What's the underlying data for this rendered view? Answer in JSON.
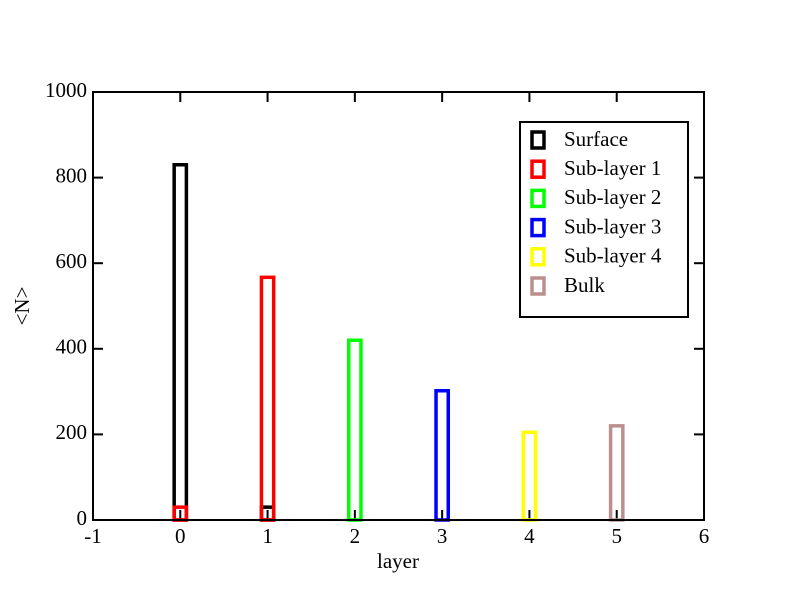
{
  "chart_data": {
    "type": "bar",
    "x_label": "layer",
    "y_label": "<N>",
    "xlim": [
      -1,
      6
    ],
    "xticks": [
      -1,
      0,
      1,
      2,
      3,
      4,
      5,
      6
    ],
    "ylim": [
      0,
      1000
    ],
    "yticks": [
      0,
      200,
      400,
      600,
      800,
      1000
    ],
    "legend": "upper right",
    "series": [
      {
        "name": "Surface",
        "color": "#000000",
        "x": [
          0,
          1
        ],
        "values": [
          830,
          30
        ]
      },
      {
        "name": "Sub-layer 1",
        "color": "#ff0000",
        "x": [
          0,
          1
        ],
        "values": [
          30,
          567
        ]
      },
      {
        "name": "Sub-layer 2",
        "color": "#00ff00",
        "x": [
          2
        ],
        "values": [
          420
        ]
      },
      {
        "name": "Sub-layer 3",
        "color": "#0000ff",
        "x": [
          3
        ],
        "values": [
          302
        ]
      },
      {
        "name": "Sub-layer 4",
        "color": "#ffff00",
        "x": [
          4
        ],
        "values": [
          205
        ]
      },
      {
        "name": "Bulk",
        "color": "#bc8f8f",
        "x": [
          5
        ],
        "values": [
          220
        ]
      }
    ]
  }
}
